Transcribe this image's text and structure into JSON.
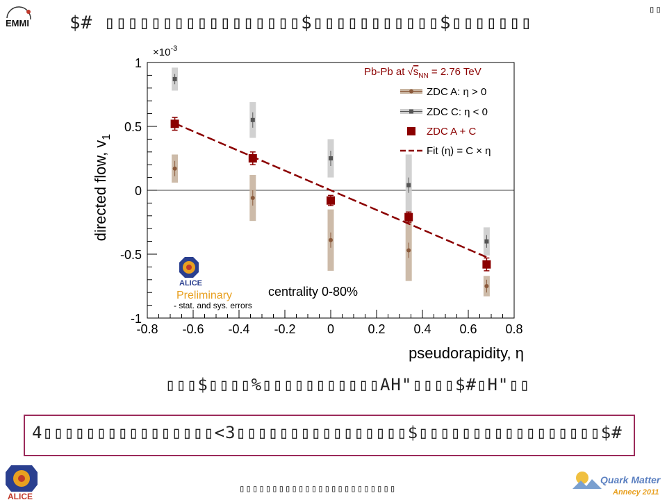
{
  "header": {
    "title_garbled": "$#  ▯▯▯▯▯▯▯▯▯▯▯▯▯▯▯▯▯$▯▯▯▯▯▯▯▯▯▯▯$▯▯▯▯▯▯▯",
    "corner_glyph": "▯▯",
    "emmi_logo_text": "EMMI"
  },
  "caption_garbled": "▯▯▯$▯▯▯▯%▯▯▯▯▯▯▯▯▯▯▯AH\"▯▯▯▯$#▯H\"▯▯",
  "bottom_box_garbled": "4▯▯▯▯▯▯▯▯▯▯▯▯▯▯▯▯<3▯▯▯▯▯▯▯▯▯▯▯▯▯▯▯▯$▯▯▯▯▯▯▯▯▯▯▯▯▯▯▯▯▯$#",
  "footer_garbled": "▯▯▯▯▯▯▯▯▯▯▯▯▯▯▯▯▯▯▯▯▯▯▯▯",
  "logos": {
    "alice_text": "ALICE",
    "qm_line1": "Quark Matter",
    "qm_line2": "Annecy 2011"
  },
  "colors": {
    "dark_red": "#8b0000",
    "zdc_a": "#8b5a3c",
    "zdc_a_band": "#c8b4a0",
    "zdc_c": "#555555",
    "zdc_c_band": "#cccccc",
    "frame_border": "#9b2a5a",
    "preliminary_orange": "#e8a020"
  },
  "chart_data": {
    "type": "scatter",
    "title": "",
    "xlabel": "pseudorapidity, η",
    "ylabel": "directed flow, v",
    "ylabel_sub": "1",
    "y_multiplier": "×10",
    "y_multiplier_exp": "-3",
    "xlim": [
      -0.8,
      0.8
    ],
    "ylim": [
      -1,
      1
    ],
    "x_ticks": [
      "-0.8",
      "-0.6",
      "-0.4",
      "-0.2",
      "0",
      "0.2",
      "0.4",
      "0.6",
      "0.8"
    ],
    "y_ticks": [
      "-1",
      "-0.5",
      "0",
      "0.5",
      "1"
    ],
    "grid": false,
    "legend_position": "top-right",
    "legend_header": "Pb-Pb at √s_NN = 2.76 TeV",
    "legend_header_parts": {
      "pre": "Pb-Pb at ",
      "s": "s",
      "sub": "NN",
      "post": " = 2.76 TeV"
    },
    "annotation_centrality": "centrality 0-80%",
    "annotation_preliminary": "Preliminary",
    "annotation_errors": "- stat. and sys. errors",
    "series": [
      {
        "name": "ZDC A:  η > 0",
        "x": [
          -0.68,
          -0.34,
          0.0,
          0.34,
          0.68
        ],
        "y": [
          0.17,
          -0.06,
          -0.39,
          -0.47,
          -0.75
        ],
        "stat_err": [
          0.06,
          0.06,
          0.06,
          0.06,
          0.05
        ],
        "sys_err": [
          0.11,
          0.18,
          0.24,
          0.24,
          0.08
        ]
      },
      {
        "name": "ZDC C:  η < 0",
        "x": [
          -0.68,
          -0.34,
          0.0,
          0.34,
          0.68
        ],
        "y": [
          0.87,
          0.55,
          0.25,
          0.04,
          -0.4
        ],
        "stat_err": [
          0.04,
          0.06,
          0.06,
          0.06,
          0.05
        ],
        "sys_err": [
          0.09,
          0.14,
          0.15,
          0.24,
          0.11
        ]
      },
      {
        "name": "ZDC A + C",
        "x": [
          -0.68,
          -0.34,
          0.0,
          0.34,
          0.68
        ],
        "y": [
          0.52,
          0.25,
          -0.08,
          -0.21,
          -0.58
        ],
        "stat_err": [
          0.05,
          0.05,
          0.04,
          0.04,
          0.05
        ],
        "sys_err": [
          0.0,
          0.0,
          0.0,
          0.0,
          0.0
        ]
      }
    ],
    "fit": {
      "name": "Fit (η)  =  C × η",
      "slope": -0.77,
      "x_range": [
        -0.68,
        0.68
      ]
    }
  }
}
